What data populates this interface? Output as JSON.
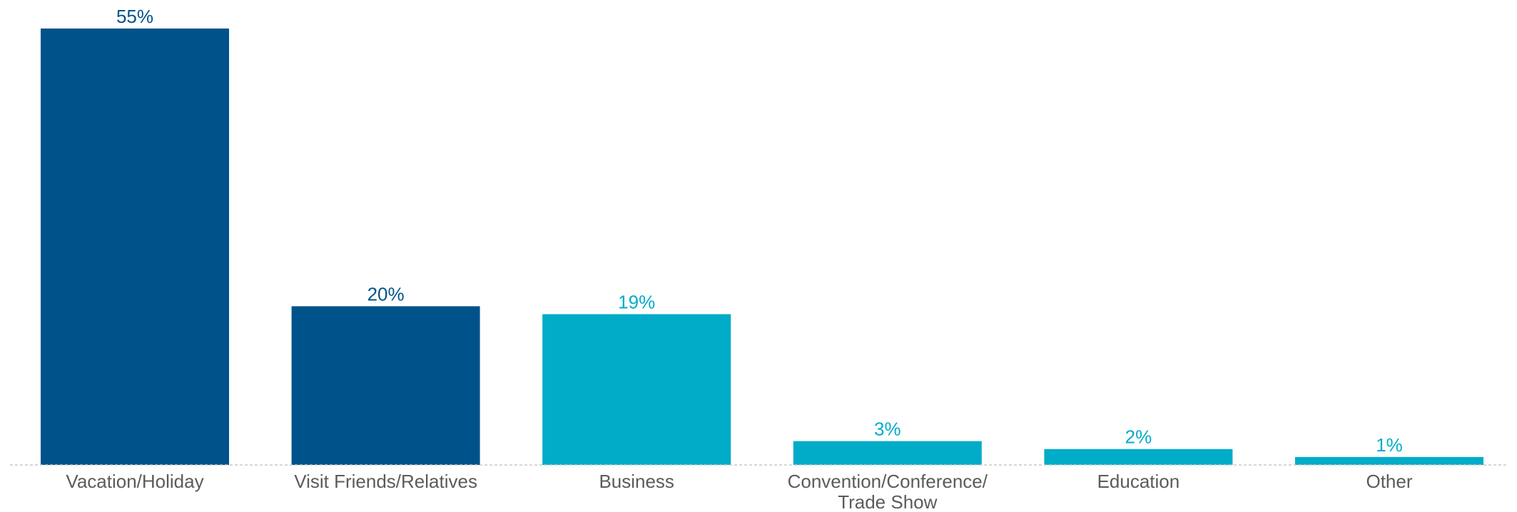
{
  "chart_data": {
    "type": "bar",
    "title": "",
    "xlabel": "",
    "ylabel": "",
    "categories": [
      [
        "Vacation/Holiday"
      ],
      [
        "Visit Friends/Relatives"
      ],
      [
        "Business"
      ],
      [
        "Convention/Conference/",
        "Trade Show"
      ],
      [
        "Education"
      ],
      [
        "Other"
      ]
    ],
    "values": [
      55,
      20,
      19,
      3,
      2,
      1
    ],
    "value_labels": [
      "55%",
      "20%",
      "19%",
      "3%",
      "2%",
      "1%"
    ],
    "bar_colors": [
      "#00538a",
      "#00538a",
      "#00acc8",
      "#00acc8",
      "#00acc8",
      "#00acc8"
    ],
    "ylim": [
      0,
      55
    ],
    "grid": false,
    "legend": "none",
    "baseline_color": "#c8c8c8"
  }
}
